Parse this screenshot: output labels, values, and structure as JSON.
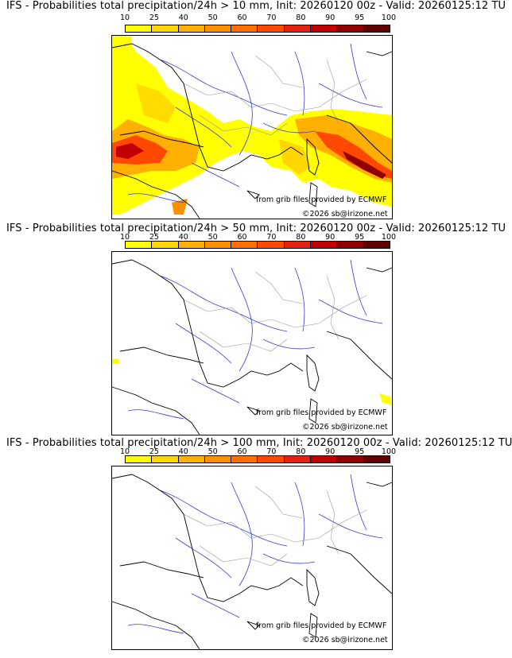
{
  "colorbar": {
    "ticks": [
      "10",
      "25",
      "40",
      "50",
      "60",
      "70",
      "80",
      "90",
      "95",
      "100"
    ],
    "colors": [
      "#ffff00",
      "#ffd700",
      "#ffb000",
      "#ff9000",
      "#ff7000",
      "#ff4800",
      "#e82010",
      "#c00000",
      "#900000",
      "#600000"
    ]
  },
  "panels": [
    {
      "title": "IFS - Probabilities total precipitation/24h > 10 mm, Init: 20260120 00z - Valid: 20260125:12 TU",
      "source": "from grib files provided by ECMWF",
      "copyright": "©2026 sb@irizone.net"
    },
    {
      "title": "IFS - Probabilities total precipitation/24h > 50 mm, Init: 20260120 00z - Valid: 20260125:12 TU",
      "source": "from grib files provided by ECMWF",
      "copyright": "©2026 sb@irizone.net"
    },
    {
      "title": "IFS - Probabilities total precipitation/24h > 100 mm, Init: 20260120 00z - Valid: 20260125:12 TU",
      "source": "from grib files provided by ECMWF",
      "copyright": "©2026 sb@irizone.net"
    }
  ]
}
